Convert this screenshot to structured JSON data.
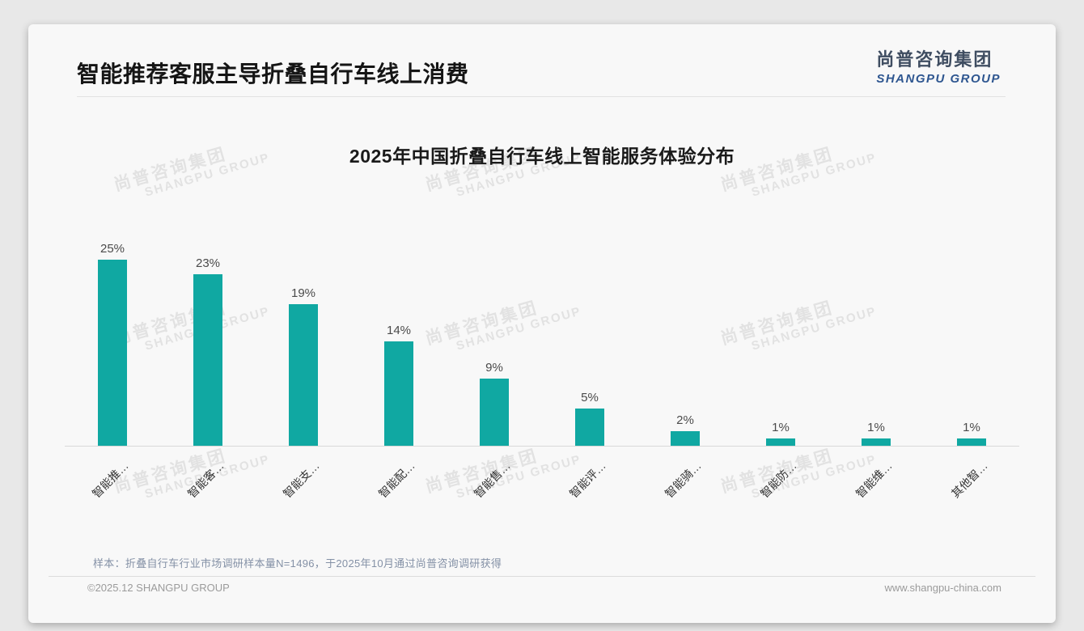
{
  "page": {
    "title": "智能推荐客服主导折叠自行车线上消费",
    "logo": {
      "cn": "尚普咨询集团",
      "en": "SHANGPU GROUP"
    },
    "watermark": {
      "cn": "尚普咨询集团",
      "en": "SHANGPU GROUP"
    },
    "note": "样本：折叠自行车行业市场调研样本量N=1496，于2025年10月通过尚普咨询调研获得",
    "footer": {
      "left": "©2025.12 SHANGPU GROUP",
      "right": "www.shangpu-china.com"
    }
  },
  "chart_data": {
    "type": "bar",
    "title": "2025年中国折叠自行车线上智能服务体验分布",
    "categories": [
      "智能推…",
      "智能客…",
      "智能支…",
      "智能配…",
      "智能售…",
      "智能评…",
      "智能骑…",
      "智能防…",
      "智能维…",
      "其他智…"
    ],
    "values": [
      25,
      23,
      19,
      14,
      9,
      5,
      2,
      1,
      1,
      1
    ],
    "unit": "%",
    "label_format": "{value}%",
    "bar_color": "#10A8A2",
    "value_label_color": "#4a4a4a",
    "ylim": [
      0,
      27
    ],
    "grid": false,
    "legend": null,
    "xlabel": "",
    "ylabel": ""
  }
}
